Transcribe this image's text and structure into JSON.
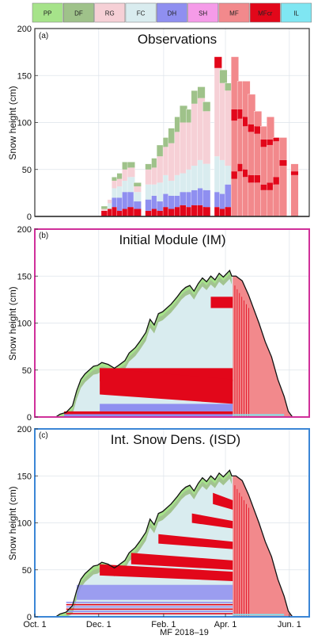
{
  "legend": [
    {
      "code": "PP",
      "color": "#a6e38a"
    },
    {
      "code": "DF",
      "color": "#9fc28a"
    },
    {
      "code": "RG",
      "color": "#f6d0d6"
    },
    {
      "code": "FC",
      "color": "#d9ecef"
    },
    {
      "code": "DH",
      "color": "#8f8ff0"
    },
    {
      "code": "SH",
      "color": "#f59be8"
    },
    {
      "code": "MF",
      "color": "#f2898c"
    },
    {
      "code": "MFcr",
      "color": "#e2071a"
    },
    {
      "code": "IL",
      "color": "#7fe6f2"
    }
  ],
  "x_axis": {
    "label": "MF 2018–19",
    "ticks": [
      "Oct. 1",
      "Dec. 1",
      "Feb. 1",
      "Apr. 1",
      "Jun. 1"
    ],
    "tick_days": [
      0,
      61,
      123,
      182,
      243
    ],
    "range_days": [
      0,
      262
    ]
  },
  "chart_data": [
    {
      "type": "bar",
      "panel_label": "(a)",
      "title": "Observations",
      "ylabel": "Snow height (cm)",
      "ylim": [
        0,
        200
      ],
      "yticks": [
        0,
        50,
        100,
        150,
        200
      ],
      "frame_color": "#333333",
      "note": "Stacked snow-profile bars by grain type; x in days since Oct. 1",
      "bars": [
        {
          "x": 67,
          "layers": [
            [
              "MFcr",
              6
            ],
            [
              "RG",
              2
            ],
            [
              "DF",
              3
            ]
          ]
        },
        {
          "x": 73,
          "layers": [
            [
              "MFcr",
              8
            ],
            [
              "FC",
              6
            ],
            [
              "RG",
              4
            ]
          ]
        },
        {
          "x": 77,
          "layers": [
            [
              "MFcr",
              10
            ],
            [
              "DH",
              10
            ],
            [
              "FC",
              10
            ],
            [
              "RG",
              8
            ],
            [
              "DF",
              4
            ]
          ]
        },
        {
          "x": 82,
          "layers": [
            [
              "MFcr",
              6
            ],
            [
              "DH",
              14
            ],
            [
              "FC",
              12
            ],
            [
              "RG",
              8
            ],
            [
              "DF",
              6
            ]
          ]
        },
        {
          "x": 87,
          "layers": [
            [
              "MFcr",
              8
            ],
            [
              "DH",
              18
            ],
            [
              "FC",
              12
            ],
            [
              "RG",
              12
            ],
            [
              "DF",
              8
            ]
          ]
        },
        {
          "x": 92,
          "layers": [
            [
              "MFcr",
              10
            ],
            [
              "DH",
              16
            ],
            [
              "FC",
              16
            ],
            [
              "RG",
              10
            ],
            [
              "DF",
              6
            ]
          ]
        },
        {
          "x": 98,
          "layers": [
            [
              "MFcr",
              8
            ],
            [
              "DH",
              8
            ],
            [
              "FC",
              10
            ],
            [
              "RG",
              6
            ],
            [
              "DF",
              4
            ]
          ]
        },
        {
          "x": 109,
          "layers": [
            [
              "MFcr",
              6
            ],
            [
              "DH",
              12
            ],
            [
              "FC",
              16
            ],
            [
              "RG",
              16
            ],
            [
              "DF",
              6
            ]
          ]
        },
        {
          "x": 115,
          "layers": [
            [
              "MFcr",
              8
            ],
            [
              "DH",
              14
            ],
            [
              "FC",
              12
            ],
            [
              "RG",
              18
            ],
            [
              "DF",
              10
            ]
          ]
        },
        {
          "x": 120,
          "layers": [
            [
              "MFcr",
              6
            ],
            [
              "DH",
              10
            ],
            [
              "FC",
              20
            ],
            [
              "RG",
              28
            ],
            [
              "DF",
              12
            ]
          ]
        },
        {
          "x": 126,
          "layers": [
            [
              "MFcr",
              10
            ],
            [
              "DH",
              14
            ],
            [
              "FC",
              20
            ],
            [
              "RG",
              30
            ],
            [
              "DF",
              10
            ]
          ]
        },
        {
          "x": 131,
          "layers": [
            [
              "MFcr",
              8
            ],
            [
              "DH",
              14
            ],
            [
              "FC",
              16
            ],
            [
              "RG",
              40
            ],
            [
              "DF",
              16
            ]
          ]
        },
        {
          "x": 137,
          "layers": [
            [
              "MFcr",
              10
            ],
            [
              "DH",
              12
            ],
            [
              "FC",
              22
            ],
            [
              "RG",
              46
            ],
            [
              "DF",
              16
            ]
          ]
        },
        {
          "x": 142,
          "layers": [
            [
              "MFcr",
              12
            ],
            [
              "DH",
              14
            ],
            [
              "FC",
              20
            ],
            [
              "RG",
              54
            ],
            [
              "DF",
              18
            ]
          ]
        },
        {
          "x": 148,
          "layers": [
            [
              "MFcr",
              10
            ],
            [
              "DH",
              16
            ],
            [
              "FC",
              24
            ],
            [
              "RG",
              50
            ],
            [
              "DF",
              14
            ]
          ]
        },
        {
          "x": 153,
          "layers": [
            [
              "MFcr",
              12
            ],
            [
              "DH",
              16
            ],
            [
              "FC",
              26
            ],
            [
              "RG",
              66
            ],
            [
              "DF",
              14
            ]
          ]
        },
        {
          "x": 159,
          "layers": [
            [
              "MFcr",
              12
            ],
            [
              "DH",
              18
            ],
            [
              "FC",
              30
            ],
            [
              "RG",
              66
            ],
            [
              "DF",
              12
            ]
          ]
        },
        {
          "x": 164,
          "layers": [
            [
              "MFcr",
              10
            ],
            [
              "DH",
              18
            ],
            [
              "FC",
              28
            ],
            [
              "RG",
              56
            ],
            [
              "DF",
              10
            ]
          ]
        },
        {
          "x": 175,
          "layers": [
            [
              "MFcr",
              10
            ],
            [
              "DH",
              16
            ],
            [
              "FC",
              38
            ],
            [
              "RG",
              94
            ],
            [
              "MFcr",
              12
            ]
          ]
        },
        {
          "x": 180,
          "layers": [
            [
              "MFcr",
              8
            ],
            [
              "DH",
              16
            ],
            [
              "FC",
              36
            ],
            [
              "RG",
              82
            ],
            [
              "DF",
              14
            ]
          ]
        },
        {
          "x": 185,
          "layers": [
            [
              "MFcr",
              10
            ],
            [
              "DH",
              24
            ],
            [
              "FC",
              20
            ],
            [
              "RG",
              80
            ],
            [
              "DF",
              8
            ]
          ]
        },
        {
          "x": 191,
          "layers": [
            [
              "MF",
              40
            ],
            [
              "MFcr",
              8
            ],
            [
              "MF",
              54
            ],
            [
              "MFcr",
              12
            ],
            [
              "MF",
              56
            ]
          ]
        },
        {
          "x": 197,
          "layers": [
            [
              "MF",
              48
            ],
            [
              "MFcr",
              8
            ],
            [
              "MF",
              48
            ],
            [
              "MFcr",
              10
            ],
            [
              "MF",
              30
            ]
          ]
        },
        {
          "x": 202,
          "layers": [
            [
              "MF",
              42
            ],
            [
              "MFcr",
              8
            ],
            [
              "MF",
              46
            ],
            [
              "MFcr",
              10
            ],
            [
              "MF",
              38
            ]
          ]
        },
        {
          "x": 207,
          "layers": [
            [
              "MF",
              36
            ],
            [
              "MFcr",
              8
            ],
            [
              "MF",
              46
            ],
            [
              "MFcr",
              8
            ],
            [
              "MF",
              32
            ]
          ]
        },
        {
          "x": 213,
          "layers": [
            [
              "MF",
              36
            ],
            [
              "MFcr",
              8
            ],
            [
              "MF",
              44
            ],
            [
              "MFcr",
              8
            ],
            [
              "MF",
              16
            ]
          ]
        },
        {
          "x": 219,
          "layers": [
            [
              "MF",
              28
            ],
            [
              "MFcr",
              6
            ],
            [
              "MF",
              40
            ],
            [
              "MFcr",
              8
            ],
            [
              "MF",
              14
            ]
          ]
        },
        {
          "x": 225,
          "layers": [
            [
              "MF",
              28
            ],
            [
              "MFcr",
              8
            ],
            [
              "MF",
              40
            ],
            [
              "MFcr",
              6
            ],
            [
              "MF",
              24
            ]
          ]
        },
        {
          "x": 231,
          "layers": [
            [
              "MF",
              34
            ],
            [
              "MFcr",
              8
            ],
            [
              "MF",
              38
            ],
            [
              "MFcr",
              4
            ]
          ]
        },
        {
          "x": 237,
          "layers": [
            [
              "MF",
              54
            ],
            [
              "MFcr",
              6
            ],
            [
              "MF",
              24
            ]
          ]
        },
        {
          "x": 248,
          "layers": [
            [
              "MF",
              44
            ],
            [
              "MFcr",
              4
            ],
            [
              "MF",
              8
            ]
          ]
        }
      ]
    },
    {
      "type": "area",
      "panel_label": "(b)",
      "title": "Initial Module (IM)",
      "ylabel": "Snow height (cm)",
      "ylim": [
        0,
        200
      ],
      "yticks": [
        0,
        50,
        100,
        150,
        200
      ],
      "frame_color": "#d0309a",
      "snow_height": [
        [
          20,
          0
        ],
        [
          24,
          3
        ],
        [
          30,
          5
        ],
        [
          36,
          12
        ],
        [
          40,
          28
        ],
        [
          44,
          40
        ],
        [
          48,
          46
        ],
        [
          52,
          50
        ],
        [
          56,
          54
        ],
        [
          60,
          55
        ],
        [
          64,
          58
        ],
        [
          70,
          56
        ],
        [
          76,
          52
        ],
        [
          80,
          55
        ],
        [
          86,
          60
        ],
        [
          90,
          68
        ],
        [
          96,
          74
        ],
        [
          100,
          80
        ],
        [
          106,
          90
        ],
        [
          110,
          104
        ],
        [
          114,
          98
        ],
        [
          118,
          110
        ],
        [
          122,
          112
        ],
        [
          126,
          116
        ],
        [
          130,
          120
        ],
        [
          136,
          128
        ],
        [
          140,
          134
        ],
        [
          144,
          138
        ],
        [
          148,
          140
        ],
        [
          152,
          134
        ],
        [
          156,
          142
        ],
        [
          160,
          148
        ],
        [
          164,
          144
        ],
        [
          168,
          150
        ],
        [
          172,
          146
        ],
        [
          176,
          153
        ],
        [
          180,
          149
        ],
        [
          186,
          156
        ],
        [
          188,
          150
        ],
        [
          192,
          150
        ],
        [
          198,
          145
        ],
        [
          204,
          130
        ],
        [
          208,
          118
        ],
        [
          214,
          100
        ],
        [
          220,
          80
        ],
        [
          226,
          64
        ],
        [
          232,
          40
        ],
        [
          238,
          22
        ],
        [
          242,
          6
        ],
        [
          246,
          0
        ]
      ],
      "melt_onset_day": 189
    },
    {
      "type": "area",
      "panel_label": "(c)",
      "title": "Int. Snow Dens. (ISD)",
      "ylabel": "Snow height (cm)",
      "ylim": [
        0,
        200
      ],
      "yticks": [
        0,
        50,
        100,
        150,
        200
      ],
      "frame_color": "#3b86d6",
      "snow_height": [
        [
          20,
          0
        ],
        [
          24,
          3
        ],
        [
          30,
          5
        ],
        [
          36,
          12
        ],
        [
          40,
          28
        ],
        [
          44,
          40
        ],
        [
          48,
          46
        ],
        [
          52,
          50
        ],
        [
          56,
          54
        ],
        [
          60,
          55
        ],
        [
          64,
          58
        ],
        [
          70,
          56
        ],
        [
          76,
          52
        ],
        [
          80,
          55
        ],
        [
          86,
          60
        ],
        [
          90,
          68
        ],
        [
          96,
          74
        ],
        [
          100,
          80
        ],
        [
          106,
          90
        ],
        [
          110,
          104
        ],
        [
          114,
          98
        ],
        [
          118,
          110
        ],
        [
          122,
          112
        ],
        [
          126,
          116
        ],
        [
          130,
          120
        ],
        [
          136,
          128
        ],
        [
          140,
          134
        ],
        [
          144,
          138
        ],
        [
          148,
          140
        ],
        [
          152,
          134
        ],
        [
          156,
          142
        ],
        [
          160,
          148
        ],
        [
          164,
          144
        ],
        [
          168,
          150
        ],
        [
          172,
          146
        ],
        [
          176,
          153
        ],
        [
          180,
          149
        ],
        [
          186,
          156
        ],
        [
          188,
          150
        ],
        [
          192,
          150
        ],
        [
          198,
          145
        ],
        [
          204,
          130
        ],
        [
          208,
          118
        ],
        [
          214,
          100
        ],
        [
          220,
          80
        ],
        [
          226,
          64
        ],
        [
          232,
          40
        ],
        [
          238,
          22
        ],
        [
          242,
          6
        ],
        [
          246,
          0
        ]
      ],
      "melt_onset_day": 189
    }
  ]
}
